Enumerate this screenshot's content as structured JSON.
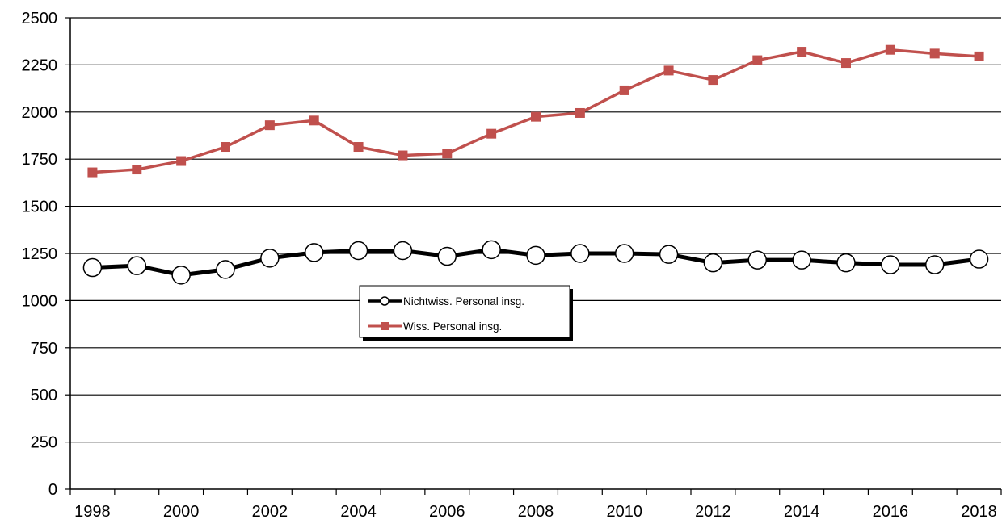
{
  "chart_data": {
    "type": "line",
    "title": "",
    "xlabel": "",
    "ylabel": "",
    "x": [
      1998,
      1999,
      2000,
      2001,
      2002,
      2003,
      2004,
      2005,
      2006,
      2007,
      2008,
      2009,
      2010,
      2011,
      2012,
      2013,
      2014,
      2015,
      2016,
      2017,
      2018
    ],
    "x_tick_labels": [
      "1998",
      "2000",
      "2002",
      "2004",
      "2006",
      "2008",
      "2010",
      "2012",
      "2014",
      "2016",
      "2018"
    ],
    "y_tick_labels": [
      "0",
      "250",
      "500",
      "750",
      "1000",
      "1250",
      "1500",
      "1750",
      "2000",
      "2250",
      "2500"
    ],
    "ylim": [
      0,
      2500
    ],
    "grid": "horizontal",
    "legend_position": "center",
    "series": [
      {
        "name": "Nichtwiss. Personal insg.",
        "color": "#000000",
        "marker": "open-circle",
        "values": [
          1175,
          1185,
          1135,
          1165,
          1225,
          1255,
          1265,
          1265,
          1235,
          1270,
          1240,
          1250,
          1250,
          1245,
          1200,
          1215,
          1215,
          1200,
          1190,
          1190,
          1220
        ]
      },
      {
        "name": "Wiss. Personal insg.",
        "color": "#c0504d",
        "marker": "square",
        "values": [
          1680,
          1695,
          1740,
          1815,
          1930,
          1955,
          1815,
          1770,
          1780,
          1885,
          1975,
          1995,
          2115,
          2220,
          2170,
          2275,
          2320,
          2260,
          2330,
          2310,
          2295
        ]
      }
    ]
  }
}
